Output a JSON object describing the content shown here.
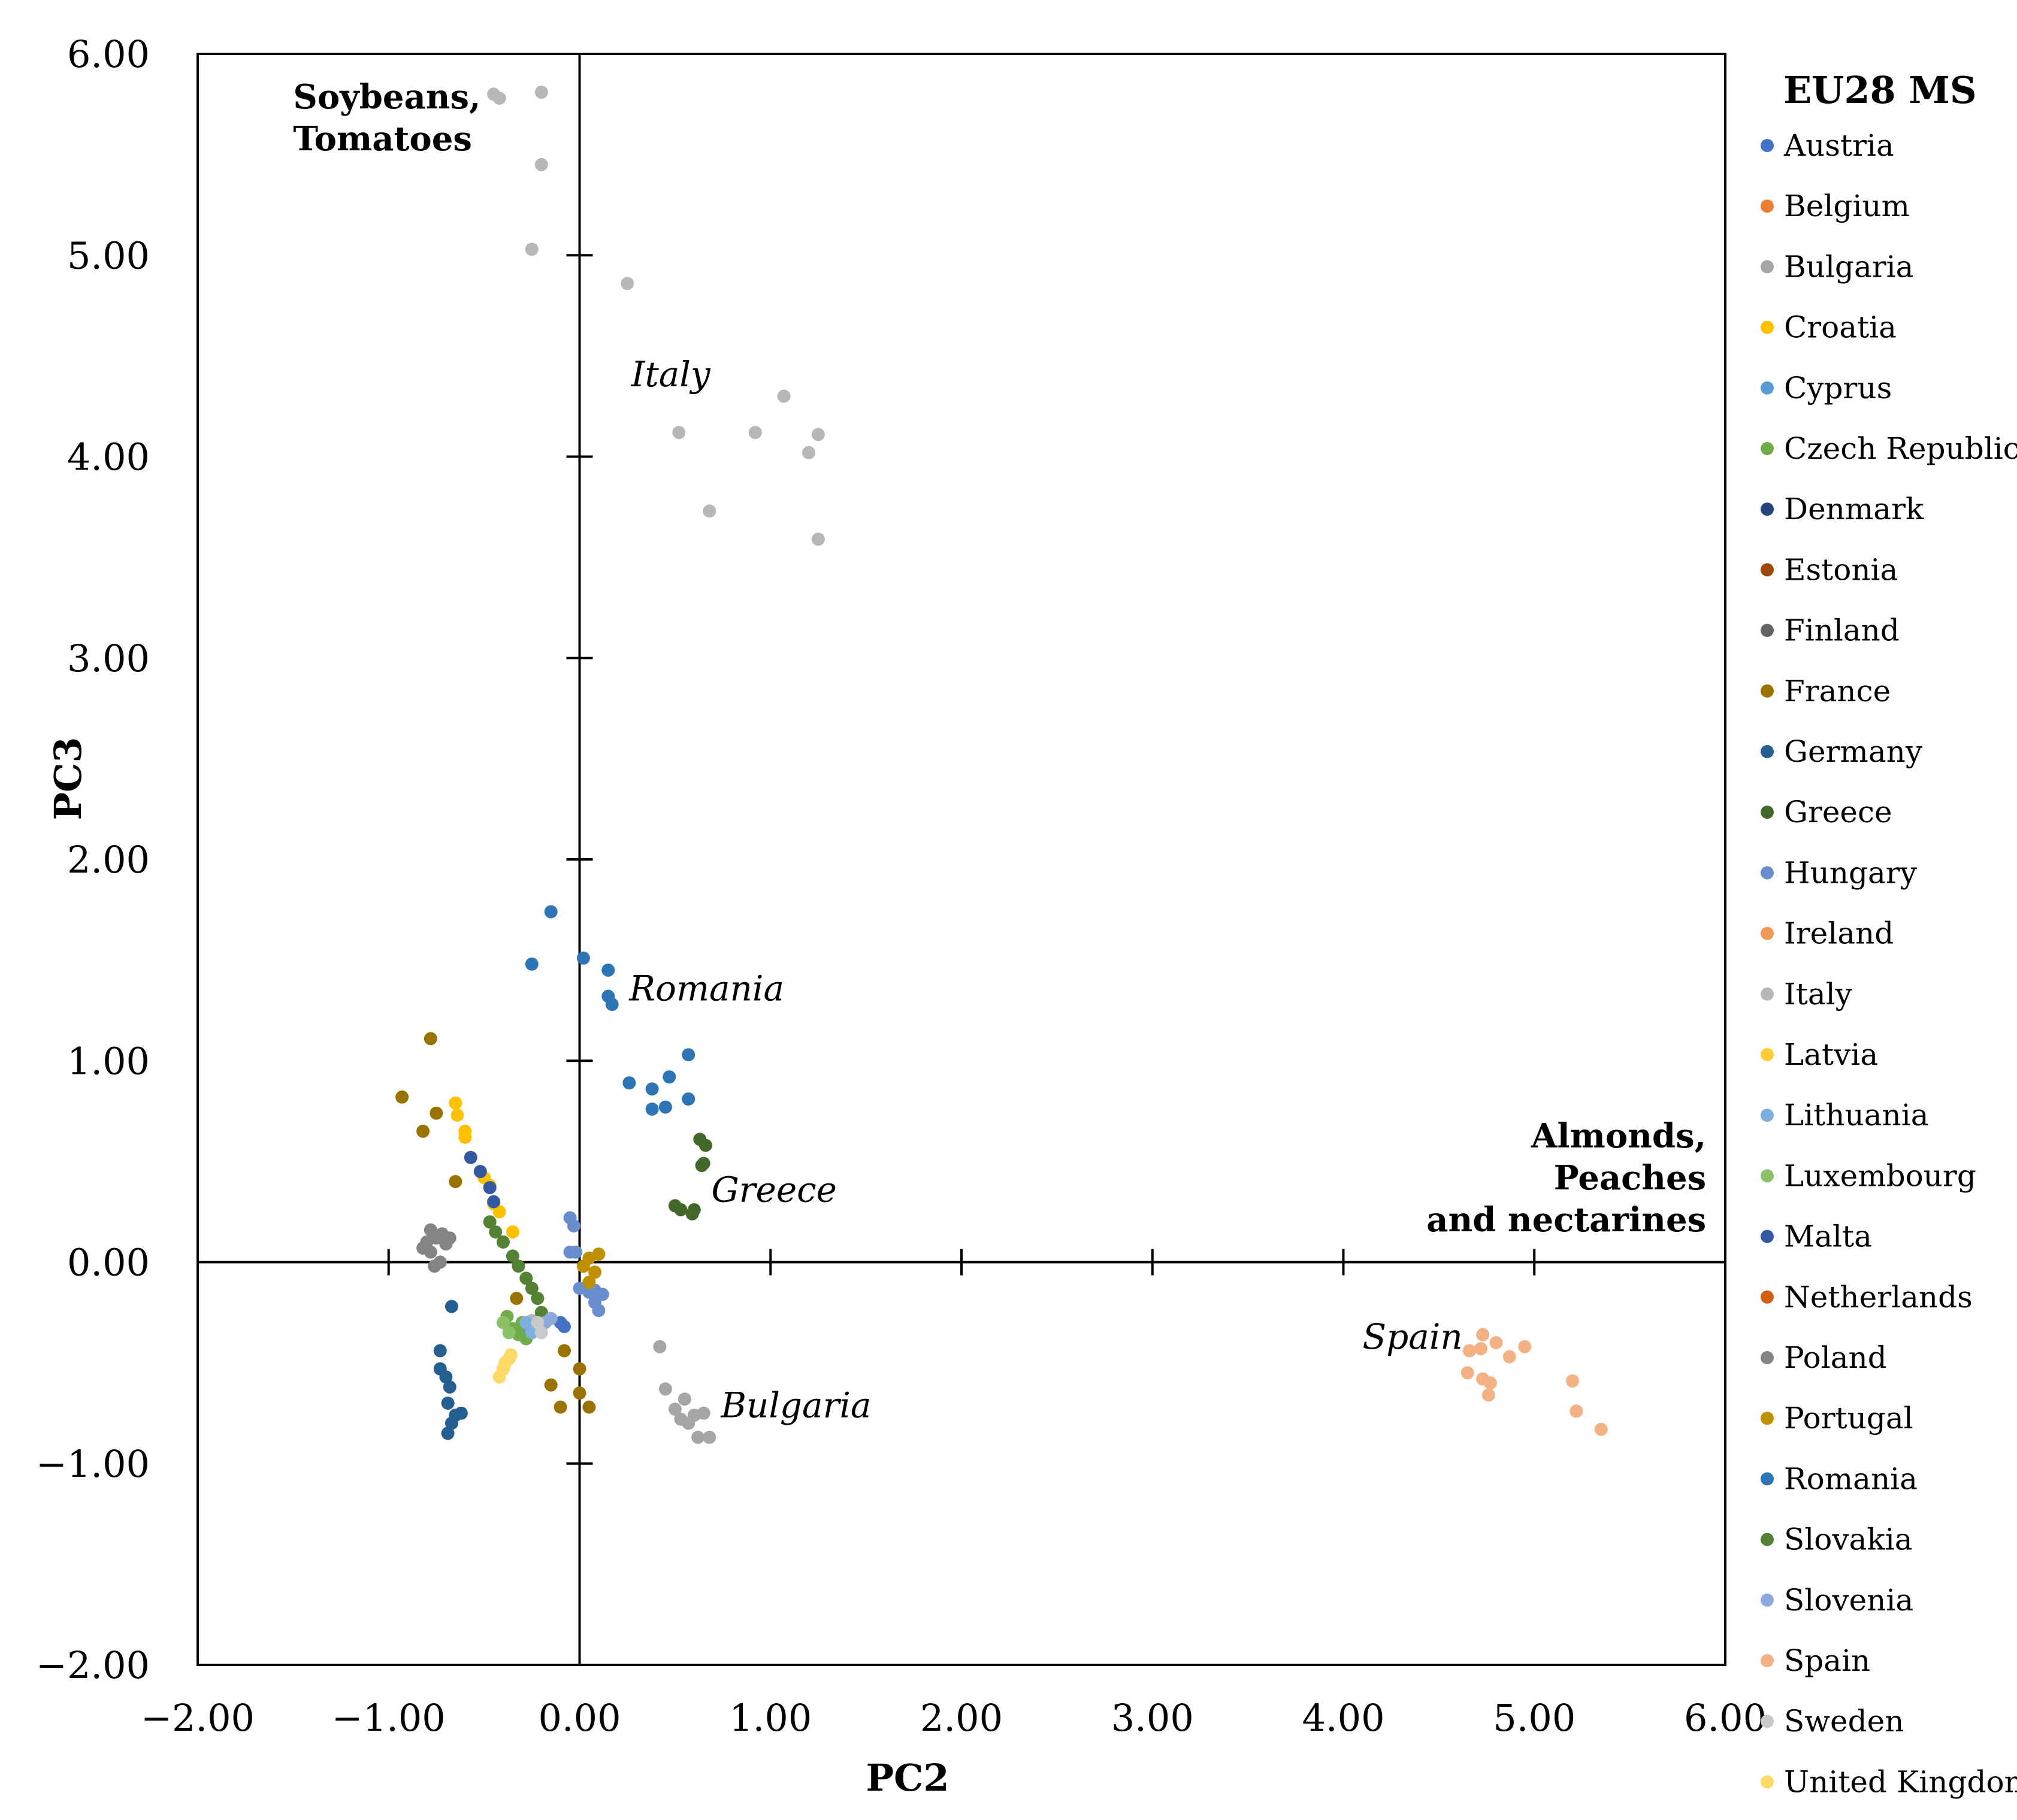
{
  "chart_data": {
    "type": "scatter",
    "xlabel": "PC2",
    "ylabel": "PC3",
    "xlim": [
      -2,
      6
    ],
    "ylim": [
      -2,
      6
    ],
    "x_ticks": [
      -2,
      -1,
      0,
      1,
      2,
      3,
      4,
      5,
      6
    ],
    "y_ticks": [
      -2,
      -1,
      0,
      1,
      2,
      3,
      4,
      5,
      6
    ],
    "x_tick_labels": [
      "−2.00",
      "−1.00",
      "0.00",
      "1.00",
      "2.00",
      "3.00",
      "4.00",
      "5.00",
      "6.00"
    ],
    "y_tick_labels": [
      "−2.00",
      "−1.00",
      "0.00",
      "1.00",
      "2.00",
      "3.00",
      "4.00",
      "5.00",
      "6.00"
    ],
    "legend_title": "EU28 MS",
    "legend_position": "right",
    "annotations": [
      {
        "lines": [
          "Soybeans,",
          "Tomatoes"
        ],
        "x": -1.5,
        "y": 5.73,
        "align": "start",
        "style": "bold"
      },
      {
        "lines": [
          "Almonds,",
          "Peaches",
          "and nectarines"
        ],
        "x": 5.9,
        "y": 0.57,
        "align": "end",
        "style": "bold"
      },
      {
        "lines": [
          "Italy"
        ],
        "x": 0.27,
        "y": 4.35,
        "align": "start",
        "style": "italic"
      },
      {
        "lines": [
          "Romania"
        ],
        "x": 0.26,
        "y": 1.3,
        "align": "start",
        "style": "italic"
      },
      {
        "lines": [
          "Greece"
        ],
        "x": 0.69,
        "y": 0.3,
        "align": "start",
        "style": "italic"
      },
      {
        "lines": [
          "Bulgaria"
        ],
        "x": 0.74,
        "y": -0.77,
        "align": "start",
        "style": "italic"
      },
      {
        "lines": [
          "Spain"
        ],
        "x": 4.1,
        "y": -0.43,
        "align": "start",
        "style": "italic"
      }
    ],
    "series": [
      {
        "name": "Austria",
        "color": "#4472C4",
        "points": [
          [
            -0.1,
            -0.3
          ],
          [
            -0.08,
            -0.32
          ]
        ]
      },
      {
        "name": "Belgium",
        "color": "#ED7D31",
        "points": []
      },
      {
        "name": "Bulgaria",
        "color": "#A5A5A5",
        "points": [
          [
            0.42,
            -0.42
          ],
          [
            0.45,
            -0.63
          ],
          [
            0.5,
            -0.73
          ],
          [
            0.53,
            -0.78
          ],
          [
            0.55,
            -0.68
          ],
          [
            0.57,
            -0.8
          ],
          [
            0.6,
            -0.76
          ],
          [
            0.62,
            -0.87
          ],
          [
            0.65,
            -0.75
          ],
          [
            0.68,
            -0.87
          ]
        ]
      },
      {
        "name": "Croatia",
        "color": "#FFC000",
        "points": [
          [
            -0.65,
            0.79
          ],
          [
            -0.64,
            0.73
          ],
          [
            -0.6,
            0.65
          ],
          [
            -0.6,
            0.62
          ],
          [
            -0.5,
            0.42
          ],
          [
            -0.47,
            0.38
          ],
          [
            -0.45,
            0.29
          ],
          [
            -0.42,
            0.25
          ],
          [
            -0.35,
            0.15
          ]
        ]
      },
      {
        "name": "Cyprus",
        "color": "#5B9BD5",
        "points": [
          [
            -0.3,
            -0.35
          ],
          [
            -0.25,
            -0.33
          ]
        ]
      },
      {
        "name": "Czech Republic",
        "color": "#70AD47",
        "points": [
          [
            -0.38,
            -0.27
          ],
          [
            -0.35,
            -0.33
          ],
          [
            -0.32,
            -0.36
          ],
          [
            -0.3,
            -0.3
          ],
          [
            -0.28,
            -0.38
          ]
        ]
      },
      {
        "name": "Denmark",
        "color": "#264478",
        "points": []
      },
      {
        "name": "Estonia",
        "color": "#9E480E",
        "points": []
      },
      {
        "name": "Finland",
        "color": "#636363",
        "points": []
      },
      {
        "name": "France",
        "color": "#997300",
        "points": [
          [
            -0.78,
            1.11
          ],
          [
            -0.93,
            0.82
          ],
          [
            -0.75,
            0.74
          ],
          [
            -0.82,
            0.65
          ],
          [
            -0.65,
            0.4
          ],
          [
            -0.33,
            -0.18
          ],
          [
            -0.08,
            -0.44
          ],
          [
            0.0,
            -0.53
          ],
          [
            -0.15,
            -0.61
          ],
          [
            -0.1,
            -0.72
          ],
          [
            0.0,
            -0.65
          ],
          [
            0.05,
            -0.72
          ]
        ]
      },
      {
        "name": "Germany",
        "color": "#255E91",
        "points": [
          [
            -0.67,
            -0.22
          ],
          [
            -0.73,
            -0.44
          ],
          [
            -0.73,
            -0.53
          ],
          [
            -0.7,
            -0.57
          ],
          [
            -0.68,
            -0.62
          ],
          [
            -0.69,
            -0.7
          ],
          [
            -0.65,
            -0.76
          ],
          [
            -0.62,
            -0.75
          ],
          [
            -0.67,
            -0.8
          ],
          [
            -0.69,
            -0.85
          ]
        ]
      },
      {
        "name": "Greece",
        "color": "#43682B",
        "points": [
          [
            0.63,
            0.61
          ],
          [
            0.66,
            0.58
          ],
          [
            0.65,
            0.49
          ],
          [
            0.64,
            0.48
          ],
          [
            0.5,
            0.28
          ],
          [
            0.53,
            0.26
          ],
          [
            0.6,
            0.26
          ],
          [
            0.59,
            0.24
          ]
        ]
      },
      {
        "name": "Hungary",
        "color": "#698ED0",
        "points": [
          [
            -0.05,
            0.22
          ],
          [
            -0.03,
            0.18
          ],
          [
            -0.02,
            0.05
          ],
          [
            -0.05,
            0.05
          ],
          [
            0.0,
            -0.13
          ],
          [
            0.05,
            -0.15
          ],
          [
            0.08,
            -0.14
          ],
          [
            0.12,
            -0.16
          ],
          [
            0.08,
            -0.2
          ],
          [
            0.1,
            -0.24
          ]
        ]
      },
      {
        "name": "Ireland",
        "color": "#F1975A",
        "points": []
      },
      {
        "name": "Italy",
        "color": "#B7B7B7",
        "points": [
          [
            -0.45,
            5.8
          ],
          [
            -0.42,
            5.78
          ],
          [
            -0.2,
            5.81
          ],
          [
            -0.2,
            5.45
          ],
          [
            -0.25,
            5.03
          ],
          [
            0.25,
            4.86
          ],
          [
            1.07,
            4.3
          ],
          [
            0.52,
            4.12
          ],
          [
            0.92,
            4.12
          ],
          [
            1.25,
            4.11
          ],
          [
            1.2,
            4.02
          ],
          [
            0.68,
            3.73
          ],
          [
            1.25,
            3.59
          ],
          [
            -0.22,
            -0.33
          ],
          [
            -0.25,
            -0.29
          ]
        ]
      },
      {
        "name": "Latvia",
        "color": "#FFCD33",
        "points": []
      },
      {
        "name": "Lithuania",
        "color": "#7CAFDD",
        "points": [
          [
            -0.28,
            -0.3
          ],
          [
            -0.25,
            -0.35
          ]
        ]
      },
      {
        "name": "Luxembourg",
        "color": "#8CC168",
        "points": [
          [
            -0.4,
            -0.3
          ],
          [
            -0.37,
            -0.35
          ]
        ]
      },
      {
        "name": "Malta",
        "color": "#335AA1",
        "points": [
          [
            -0.57,
            0.52
          ],
          [
            -0.52,
            0.45
          ],
          [
            -0.47,
            0.37
          ],
          [
            -0.45,
            0.3
          ]
        ]
      },
      {
        "name": "Netherlands",
        "color": "#D26012",
        "points": []
      },
      {
        "name": "Poland",
        "color": "#848484",
        "points": [
          [
            -0.8,
            0.1
          ],
          [
            -0.78,
            0.05
          ],
          [
            -0.75,
            0.12
          ],
          [
            -0.72,
            0.14
          ],
          [
            -0.7,
            0.09
          ],
          [
            -0.78,
            0.16
          ],
          [
            -0.73,
            0.0
          ],
          [
            -0.76,
            -0.02
          ],
          [
            -0.68,
            0.12
          ],
          [
            -0.82,
            0.07
          ]
        ]
      },
      {
        "name": "Portugal",
        "color": "#BF9000",
        "points": [
          [
            0.1,
            0.04
          ],
          [
            0.05,
            0.02
          ],
          [
            0.02,
            -0.02
          ],
          [
            0.08,
            -0.05
          ],
          [
            0.05,
            -0.1
          ]
        ]
      },
      {
        "name": "Romania",
        "color": "#2E75B6",
        "points": [
          [
            -0.15,
            1.74
          ],
          [
            -0.25,
            1.48
          ],
          [
            0.02,
            1.51
          ],
          [
            0.15,
            1.45
          ],
          [
            0.15,
            1.32
          ],
          [
            0.17,
            1.28
          ],
          [
            0.26,
            0.89
          ],
          [
            0.38,
            0.86
          ],
          [
            0.47,
            0.92
          ],
          [
            0.57,
            1.03
          ],
          [
            0.38,
            0.76
          ],
          [
            0.45,
            0.77
          ],
          [
            0.57,
            0.81
          ]
        ]
      },
      {
        "name": "Slovakia",
        "color": "#548235",
        "points": [
          [
            -0.47,
            0.2
          ],
          [
            -0.44,
            0.15
          ],
          [
            -0.4,
            0.1
          ],
          [
            -0.35,
            0.03
          ],
          [
            -0.32,
            -0.02
          ],
          [
            -0.28,
            -0.08
          ],
          [
            -0.25,
            -0.13
          ],
          [
            -0.22,
            -0.18
          ],
          [
            -0.2,
            -0.25
          ],
          [
            -0.18,
            -0.28
          ]
        ]
      },
      {
        "name": "Slovenia",
        "color": "#8EA9DB",
        "points": [
          [
            -0.15,
            -0.28
          ],
          [
            -0.18,
            -0.3
          ]
        ]
      },
      {
        "name": "Spain",
        "color": "#F4B183",
        "points": [
          [
            4.66,
            -0.44
          ],
          [
            4.73,
            -0.36
          ],
          [
            4.72,
            -0.43
          ],
          [
            4.8,
            -0.4
          ],
          [
            4.95,
            -0.42
          ],
          [
            4.87,
            -0.47
          ],
          [
            4.65,
            -0.55
          ],
          [
            4.73,
            -0.58
          ],
          [
            4.77,
            -0.6
          ],
          [
            4.76,
            -0.66
          ],
          [
            5.2,
            -0.59
          ],
          [
            5.22,
            -0.74
          ],
          [
            5.35,
            -0.83
          ]
        ]
      },
      {
        "name": "Sweden",
        "color": "#C9C9C9",
        "points": [
          [
            -0.22,
            -0.3
          ],
          [
            -0.2,
            -0.35
          ]
        ]
      },
      {
        "name": "United Kingdom",
        "color": "#FFD966",
        "points": [
          [
            -0.42,
            -0.57
          ],
          [
            -0.4,
            -0.53
          ],
          [
            -0.39,
            -0.5
          ],
          [
            -0.37,
            -0.48
          ],
          [
            -0.36,
            -0.46
          ]
        ]
      }
    ]
  }
}
